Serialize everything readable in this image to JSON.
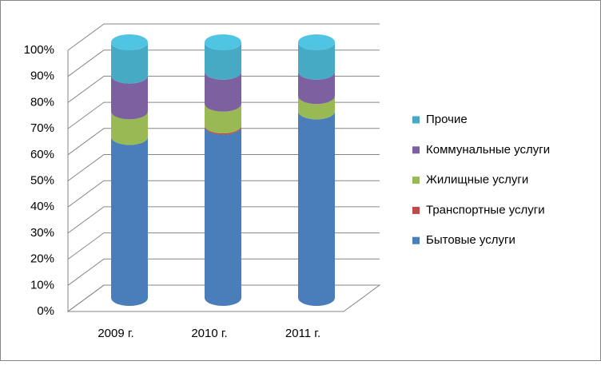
{
  "chart_data": {
    "type": "stacked_cylinder_percent",
    "categories": [
      "2009 г.",
      "2010 г.",
      "2011 г."
    ],
    "series": [
      {
        "name": "Бытовые услуги",
        "color": "#4a7ebb",
        "values": [
          63,
          67,
          73
        ]
      },
      {
        "name": "Транспортные услуги",
        "color": "#be4b48",
        "values": [
          0,
          0.5,
          0
        ]
      },
      {
        "name": "Жилищные услуги",
        "color": "#98b954",
        "values": [
          10,
          8.5,
          6
        ]
      },
      {
        "name": "Коммунальные услуги",
        "color": "#7d60a0",
        "values": [
          14,
          12.5,
          9.5
        ]
      },
      {
        "name": "Прочие",
        "color": "#46aac5",
        "values": [
          13,
          11.5,
          11.5
        ]
      }
    ],
    "ylim": [
      0,
      100
    ],
    "yticks": [
      {
        "value": 0,
        "label": "0%"
      },
      {
        "value": 10,
        "label": "10%"
      },
      {
        "value": 20,
        "label": "20%"
      },
      {
        "value": 30,
        "label": "30%"
      },
      {
        "value": 40,
        "label": "40%"
      },
      {
        "value": 50,
        "label": "50%"
      },
      {
        "value": 60,
        "label": "60%"
      },
      {
        "value": 70,
        "label": "70%"
      },
      {
        "value": 80,
        "label": "80%"
      },
      {
        "value": 90,
        "label": "90%"
      },
      {
        "value": 100,
        "label": "100%"
      }
    ],
    "grid": true,
    "legend": "right"
  }
}
